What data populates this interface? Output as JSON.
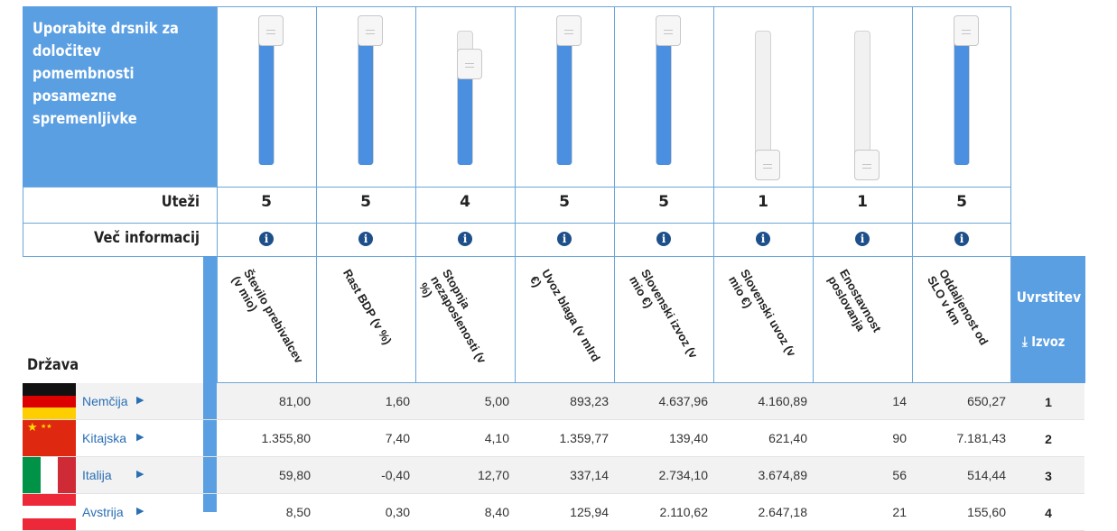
{
  "panel": {
    "instruction": "Uporabite drsnik za določitev pomembnosti posamezne spremenljivke"
  },
  "labels": {
    "weights": "Uteži",
    "more_info": "Več informacij",
    "country": "Država",
    "rank": "Uvrstitev",
    "export": "Izvoz"
  },
  "columns": [
    {
      "name": "Število prebivalcev (v mio)",
      "weight": "5"
    },
    {
      "name": "Rast BDP (v %)",
      "weight": "5"
    },
    {
      "name": "Stopnja nezaposlenosti (v %)",
      "weight": "4"
    },
    {
      "name": "Uvoz blaga (v mlrd €)",
      "weight": "5"
    },
    {
      "name": "Slovenski izvoz (v mio €)",
      "weight": "5"
    },
    {
      "name": "Slovenski uvoz (v mio €)",
      "weight": "1"
    },
    {
      "name": "Enostavnost poslovanja",
      "weight": "1"
    },
    {
      "name": "Oddaljenost od SLO v km",
      "weight": "5"
    }
  ],
  "rows": [
    {
      "country": "Nemčija",
      "flag": "germany-flag",
      "values": [
        "81,00",
        "1,60",
        "5,00",
        "893,23",
        "4.637,96",
        "4.160,89",
        "14",
        "650,27"
      ],
      "rank": "1"
    },
    {
      "country": "Kitajska",
      "flag": "china-flag",
      "values": [
        "1.355,80",
        "7,40",
        "4,10",
        "1.359,77",
        "139,40",
        "621,40",
        "90",
        "7.181,43"
      ],
      "rank": "2"
    },
    {
      "country": "Italija",
      "flag": "italy-flag",
      "values": [
        "59,80",
        "-0,40",
        "12,70",
        "337,14",
        "2.734,10",
        "3.674,89",
        "56",
        "514,44"
      ],
      "rank": "3"
    },
    {
      "country": "Avstrija",
      "flag": "austria-flag",
      "values": [
        "8,50",
        "0,30",
        "8,40",
        "125,94",
        "2.110,62",
        "2.647,18",
        "21",
        "155,60"
      ],
      "rank": "4"
    }
  ],
  "colors": {
    "accent": "#5b9fe3",
    "fill": "#4a8fe0",
    "info": "#1d4f8a",
    "link": "#2a6fb5"
  }
}
